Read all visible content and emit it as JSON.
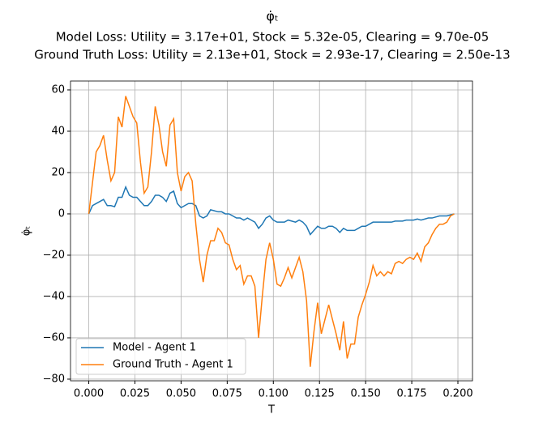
{
  "chart_data": {
    "type": "line",
    "title": "φ̇ₜ",
    "subtitle": [
      "Model Loss: Utility = 3.17e+01, Stock = 5.32e-05, Clearing = 9.70e-05",
      "Ground Truth Loss: Utility = 2.13e+01, Stock = 2.93e-17, Clearing = 2.50e-13"
    ],
    "x_label": "T",
    "y_label": "φ̇ₜ",
    "x": [
      0,
      0.002,
      0.004,
      0.006,
      0.008,
      0.01,
      0.012,
      0.014,
      0.016,
      0.018,
      0.02,
      0.022,
      0.024,
      0.026,
      0.028,
      0.03,
      0.032,
      0.034,
      0.036,
      0.038,
      0.04,
      0.042,
      0.044,
      0.046,
      0.048,
      0.05,
      0.052,
      0.054,
      0.056,
      0.058,
      0.06,
      0.062,
      0.064,
      0.066,
      0.068,
      0.07,
      0.072,
      0.074,
      0.076,
      0.078,
      0.08,
      0.082,
      0.084,
      0.086,
      0.088,
      0.09,
      0.092,
      0.094,
      0.096,
      0.098,
      0.1,
      0.102,
      0.104,
      0.106,
      0.108,
      0.11,
      0.112,
      0.114,
      0.116,
      0.118,
      0.12,
      0.122,
      0.124,
      0.126,
      0.128,
      0.13,
      0.132,
      0.134,
      0.136,
      0.138,
      0.14,
      0.142,
      0.144,
      0.146,
      0.148,
      0.15,
      0.152,
      0.154,
      0.156,
      0.158,
      0.16,
      0.162,
      0.164,
      0.166,
      0.168,
      0.17,
      0.172,
      0.174,
      0.176,
      0.178,
      0.18,
      0.182,
      0.184,
      0.186,
      0.188,
      0.19,
      0.192,
      0.194,
      0.196,
      0.198
    ],
    "series": [
      {
        "name": "Model - Agent 1",
        "color": "#1f77b4",
        "values": [
          0,
          4,
          5,
          6,
          7,
          4,
          4,
          3.5,
          8,
          8,
          13,
          9,
          8,
          8,
          6,
          4,
          4,
          6,
          9,
          9,
          8,
          6,
          10,
          11,
          5,
          3,
          4,
          5,
          5,
          4,
          -1,
          -2,
          -1,
          2,
          1.5,
          1,
          1,
          0,
          0,
          -1,
          -2,
          -2,
          -3,
          -2,
          -3,
          -4,
          -7,
          -5,
          -2,
          -1,
          -3,
          -4,
          -4,
          -4,
          -3,
          -3.5,
          -4,
          -3,
          -4,
          -6,
          -10,
          -8,
          -6,
          -7,
          -7,
          -6,
          -6,
          -7,
          -9,
          -7,
          -8,
          -8,
          -8,
          -7,
          -6,
          -6,
          -5,
          -4,
          -4,
          -4,
          -4,
          -4,
          -4,
          -3.5,
          -3.5,
          -3.5,
          -3,
          -3,
          -3,
          -2.5,
          -3,
          -2.5,
          -2,
          -2,
          -1.5,
          -1,
          -1,
          -1,
          -0.5,
          0
        ]
      },
      {
        "name": "Ground Truth - Agent 1",
        "color": "#ff7f0e",
        "values": [
          0,
          15,
          30,
          33,
          38,
          26,
          16,
          20,
          47,
          42,
          57,
          52,
          47,
          44,
          25,
          10,
          13,
          30,
          52,
          43,
          30,
          23,
          43,
          46,
          20,
          11,
          18,
          20,
          16,
          -5,
          -22,
          -33,
          -20,
          -13,
          -13,
          -7,
          -9,
          -14,
          -15,
          -22,
          -27,
          -25,
          -34,
          -30,
          -30,
          -35,
          -60,
          -40,
          -22,
          -14,
          -22,
          -34,
          -35,
          -31,
          -26,
          -31,
          -26,
          -21,
          -28,
          -42,
          -74,
          -57,
          -43,
          -58,
          -51,
          -44,
          -51,
          -58,
          -66,
          -52,
          -70,
          -63,
          -63,
          -50,
          -44,
          -39,
          -33,
          -25,
          -30,
          -28,
          -30,
          -28,
          -29,
          -24,
          -23,
          -24,
          -22,
          -21,
          -22,
          -19,
          -23,
          -16,
          -14,
          -10,
          -7,
          -5,
          -5,
          -4,
          -1,
          0
        ]
      }
    ],
    "xlim": [
      -0.0099,
      0.2079
    ],
    "ylim": [
      -80.8,
      64.3
    ],
    "xticks": [
      {
        "value": 0,
        "label": "0.000"
      },
      {
        "value": 0.025,
        "label": "0.025"
      },
      {
        "value": 0.05,
        "label": "0.050"
      },
      {
        "value": 0.075,
        "label": "0.075"
      },
      {
        "value": 0.1,
        "label": "0.100"
      },
      {
        "value": 0.125,
        "label": "0.125"
      },
      {
        "value": 0.15,
        "label": "0.150"
      },
      {
        "value": 0.175,
        "label": "0.175"
      },
      {
        "value": 0.2,
        "label": "0.200"
      }
    ],
    "yticks": [
      {
        "value": -80,
        "label": "−80"
      },
      {
        "value": -60,
        "label": "−60"
      },
      {
        "value": -40,
        "label": "−40"
      },
      {
        "value": -20,
        "label": "−20"
      },
      0,
      20,
      40,
      60
    ],
    "grid": true,
    "legend": "lower left"
  }
}
